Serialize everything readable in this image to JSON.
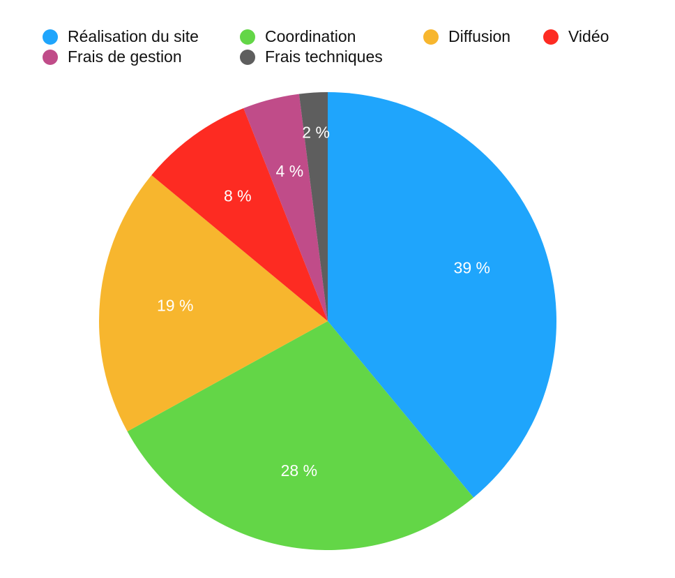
{
  "chart_data": {
    "type": "pie",
    "categories": [
      "Réalisation du site",
      "Coordination",
      "Diffusion",
      "Vidéo",
      "Frais de gestion",
      "Frais techniques"
    ],
    "values": [
      39,
      28,
      19,
      8,
      4,
      2
    ],
    "value_labels": [
      "39 %",
      "28 %",
      "19 %",
      "8 %",
      "4 %",
      "2 %"
    ],
    "colors": [
      "#1fa5fc",
      "#63d647",
      "#f7b62e",
      "#fd2b22",
      "#c04c89",
      "#5e5e5e"
    ]
  }
}
